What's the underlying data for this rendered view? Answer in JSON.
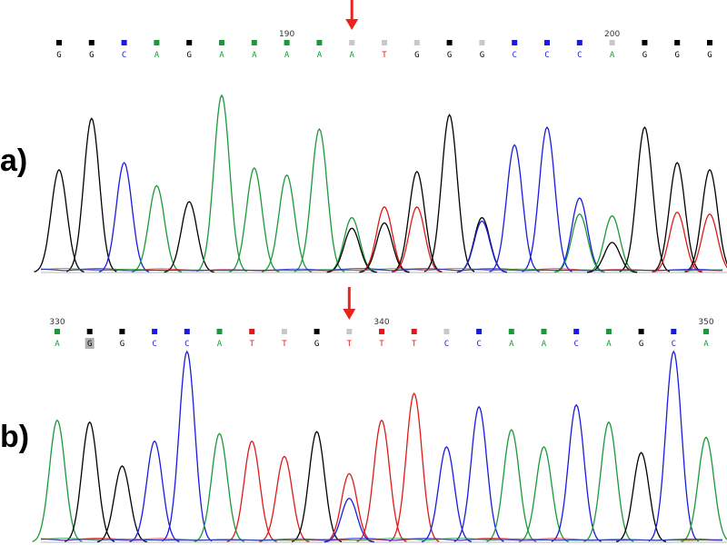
{
  "colors": {
    "A": "#1a9a3a",
    "C": "#1a1ae0",
    "G": "#000000",
    "T": "#e01a1a",
    "arrow": "#e8241c",
    "N": "#c8c8c8"
  },
  "chart_data": [
    {
      "type": "line",
      "panel_label": "a)",
      "position_labels": [
        {
          "text": "190",
          "index": 7
        },
        {
          "text": "200",
          "index": 17
        }
      ],
      "bases": [
        "G",
        "G",
        "C",
        "A",
        "G",
        "A",
        "A",
        "A",
        "A",
        "A",
        "T",
        "G",
        "G",
        "G",
        "C",
        "C",
        "C",
        "A",
        "G",
        "G",
        "G"
      ],
      "box_colors": [
        "G",
        "G",
        "C",
        "A",
        "G",
        "A",
        "A",
        "A",
        "A",
        "N",
        "N",
        "N",
        "G",
        "N",
        "C",
        "C",
        "C",
        "N",
        "G",
        "G",
        "G"
      ],
      "highlighted_index": -1,
      "arrow_index": 9,
      "peaks": [
        {
          "base": "G",
          "index": 0,
          "height": 0.58
        },
        {
          "base": "G",
          "index": 1,
          "height": 0.87
        },
        {
          "base": "C",
          "index": 2,
          "height": 0.62
        },
        {
          "base": "A",
          "index": 3,
          "height": 0.49
        },
        {
          "base": "G",
          "index": 4,
          "height": 0.4
        },
        {
          "base": "A",
          "index": 5,
          "height": 1.0
        },
        {
          "base": "A",
          "index": 6,
          "height": 0.59
        },
        {
          "base": "A",
          "index": 7,
          "height": 0.55
        },
        {
          "base": "A",
          "index": 8,
          "height": 0.81
        },
        {
          "base": "A",
          "index": 9,
          "height": 0.31
        },
        {
          "base": "G",
          "index": 9,
          "height": 0.25
        },
        {
          "base": "T",
          "index": 10,
          "height": 0.37
        },
        {
          "base": "G",
          "index": 10,
          "height": 0.28
        },
        {
          "base": "G",
          "index": 11,
          "height": 0.57
        },
        {
          "base": "T",
          "index": 11,
          "height": 0.37
        },
        {
          "base": "G",
          "index": 12,
          "height": 0.89
        },
        {
          "base": "G",
          "index": 13,
          "height": 0.31
        },
        {
          "base": "C",
          "index": 13,
          "height": 0.29
        },
        {
          "base": "C",
          "index": 14,
          "height": 0.72
        },
        {
          "base": "C",
          "index": 15,
          "height": 0.82
        },
        {
          "base": "C",
          "index": 16,
          "height": 0.42
        },
        {
          "base": "A",
          "index": 16,
          "height": 0.33
        },
        {
          "base": "A",
          "index": 17,
          "height": 0.32
        },
        {
          "base": "G",
          "index": 17,
          "height": 0.17
        },
        {
          "base": "G",
          "index": 18,
          "height": 0.82
        },
        {
          "base": "G",
          "index": 19,
          "height": 0.62
        },
        {
          "base": "T",
          "index": 19,
          "height": 0.34
        },
        {
          "base": "G",
          "index": 20,
          "height": 0.58
        },
        {
          "base": "T",
          "index": 20,
          "height": 0.33
        }
      ]
    },
    {
      "type": "line",
      "panel_label": "b)",
      "position_labels": [
        {
          "text": "330",
          "index": 0
        },
        {
          "text": "340",
          "index": 10
        },
        {
          "text": "350",
          "index": 20
        }
      ],
      "bases": [
        "A",
        "G",
        "G",
        "C",
        "C",
        "A",
        "T",
        "T",
        "G",
        "T",
        "T",
        "T",
        "C",
        "C",
        "A",
        "A",
        "C",
        "A",
        "G",
        "C",
        "A"
      ],
      "box_colors": [
        "A",
        "G",
        "G",
        "C",
        "C",
        "A",
        "T",
        "N",
        "G",
        "N",
        "T",
        "T",
        "N",
        "C",
        "A",
        "A",
        "C",
        "A",
        "G",
        "C",
        "A"
      ],
      "highlighted_index": 1,
      "arrow_index": 9,
      "peaks": [
        {
          "base": "A",
          "index": 0,
          "height": 0.64
        },
        {
          "base": "G",
          "index": 1,
          "height": 0.63
        },
        {
          "base": "G",
          "index": 2,
          "height": 0.4
        },
        {
          "base": "C",
          "index": 3,
          "height": 0.53
        },
        {
          "base": "C",
          "index": 4,
          "height": 1.0
        },
        {
          "base": "A",
          "index": 5,
          "height": 0.57
        },
        {
          "base": "T",
          "index": 6,
          "height": 0.53
        },
        {
          "base": "T",
          "index": 7,
          "height": 0.45
        },
        {
          "base": "G",
          "index": 8,
          "height": 0.58
        },
        {
          "base": "T",
          "index": 9,
          "height": 0.36
        },
        {
          "base": "C",
          "index": 9,
          "height": 0.23
        },
        {
          "base": "T",
          "index": 10,
          "height": 0.64
        },
        {
          "base": "T",
          "index": 11,
          "height": 0.78
        },
        {
          "base": "C",
          "index": 12,
          "height": 0.5
        },
        {
          "base": "C",
          "index": 13,
          "height": 0.71
        },
        {
          "base": "A",
          "index": 14,
          "height": 0.59
        },
        {
          "base": "A",
          "index": 15,
          "height": 0.5
        },
        {
          "base": "C",
          "index": 16,
          "height": 0.72
        },
        {
          "base": "A",
          "index": 17,
          "height": 0.63
        },
        {
          "base": "G",
          "index": 18,
          "height": 0.47
        },
        {
          "base": "C",
          "index": 19,
          "height": 1.0
        },
        {
          "base": "A",
          "index": 20,
          "height": 0.55
        }
      ]
    }
  ]
}
